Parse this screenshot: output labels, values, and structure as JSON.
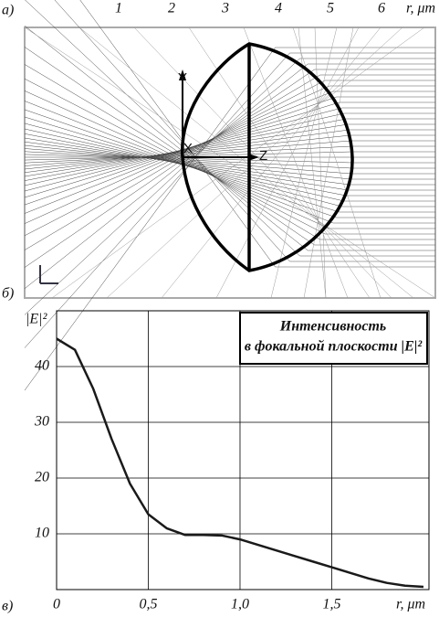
{
  "panel_a": {
    "label": "а)",
    "ticks": [
      "1",
      "2",
      "3",
      "4",
      "5",
      "6"
    ],
    "axis_unit": "r, μm",
    "axes": [
      "Y",
      "X",
      "Z"
    ],
    "label_b": "б)"
  },
  "chart_data": {
    "type": "line",
    "panel_label": "в)",
    "ylabel": "|E|²",
    "xlabel": "r, μm",
    "legend_lines": [
      "Интенсивность",
      "в фокальной плоскости |E|²"
    ],
    "x": [
      0,
      0.1,
      0.2,
      0.3,
      0.4,
      0.5,
      0.6,
      0.7,
      0.8,
      0.9,
      1.0,
      1.1,
      1.2,
      1.3,
      1.4,
      1.5,
      1.6,
      1.7,
      1.8,
      1.9,
      2.0
    ],
    "series": [
      {
        "name": "|E|²",
        "color": "#1a1a1a",
        "values": [
          45,
          43,
          36,
          27,
          19,
          13.5,
          11,
          9.8,
          9.8,
          9.7,
          9,
          8,
          7,
          6,
          5,
          4,
          3,
          2,
          1.2,
          0.7,
          0.5
        ]
      }
    ],
    "xlim": [
      0,
      2.03
    ],
    "ylim": [
      0,
      50
    ],
    "xticks": [
      0,
      {
        "value": 0.5,
        "label": "0,5"
      },
      {
        "value": 1.0,
        "label": "1,0"
      },
      {
        "value": 1.5,
        "label": "1,5"
      }
    ],
    "yticks": [
      10,
      20,
      30,
      40
    ],
    "grid": true
  }
}
